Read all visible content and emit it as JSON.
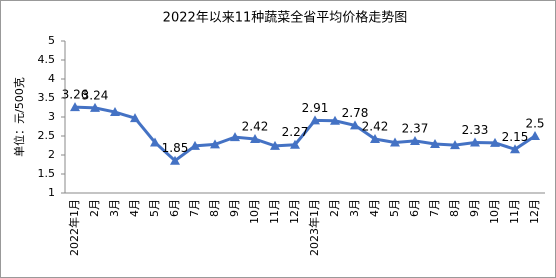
{
  "chart_data": {
    "type": "line",
    "title": "2022年以来11种蔬菜全省平均价格走势图",
    "y_label": "单位：元/500克",
    "categories": [
      "2022年1月",
      "2月",
      "3月",
      "4月",
      "5月",
      "6月",
      "7月",
      "8月",
      "9月",
      "10月",
      "11月",
      "12月",
      "2023年1月",
      "2月",
      "3月",
      "4月",
      "5月",
      "6月",
      "7月",
      "8月",
      "9月",
      "10月",
      "11月",
      "12月"
    ],
    "series": [
      {
        "name": "平均价格",
        "color": "#4472c4",
        "values": [
          3.26,
          3.24,
          3.13,
          2.97,
          2.33,
          1.85,
          2.24,
          2.28,
          2.47,
          2.42,
          2.24,
          2.27,
          2.91,
          2.9,
          2.78,
          2.42,
          2.33,
          2.37,
          2.29,
          2.26,
          2.33,
          2.32,
          2.15,
          2.5
        ],
        "value_labels": [
          "3.26",
          "3.24",
          null,
          null,
          null,
          "1.85",
          null,
          null,
          null,
          "2.42",
          null,
          "2.27",
          "2.91",
          null,
          "2.78",
          "2.42",
          null,
          "2.37",
          null,
          null,
          "2.33",
          null,
          "2.15",
          "2.5"
        ]
      }
    ],
    "ylim": [
      1,
      5
    ],
    "yticks": [
      1,
      1.5,
      2,
      2.5,
      3,
      3.5,
      4,
      4.5,
      5
    ],
    "grid": false
  }
}
